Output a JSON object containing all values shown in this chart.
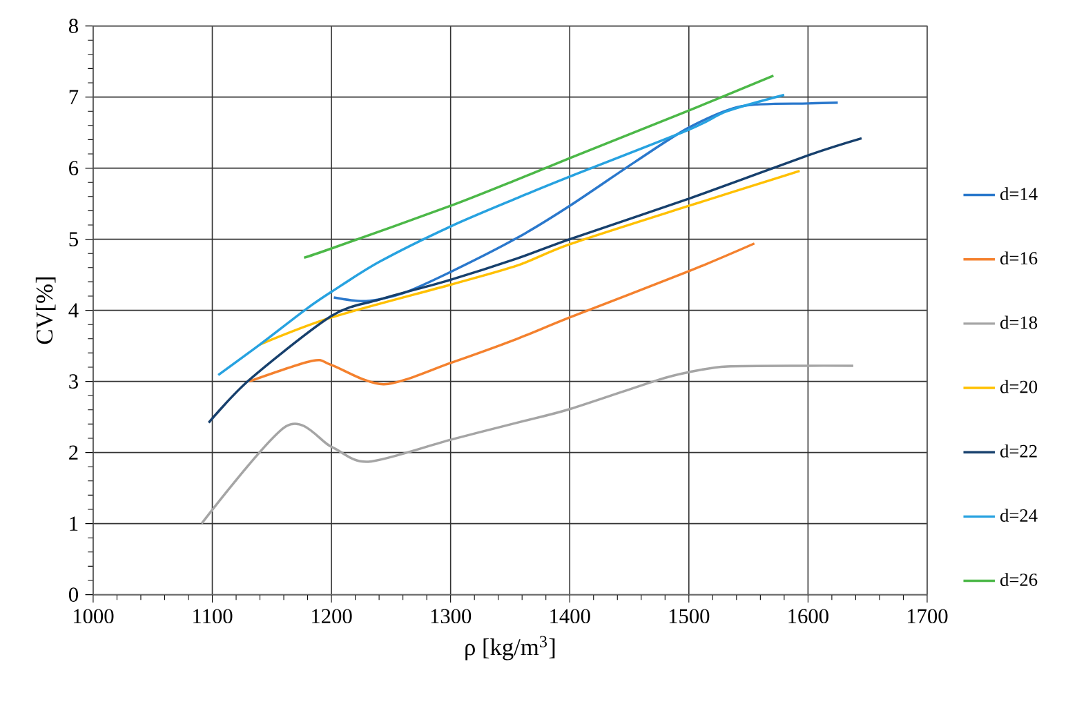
{
  "chart_data": {
    "type": "line",
    "xlabel": "ρ [kg/m$^{3}$]",
    "ylabel": "CV[%]",
    "xlim": [
      1000,
      1700
    ],
    "xticks": [
      1000,
      1100,
      1200,
      1300,
      1400,
      1500,
      1600,
      1700
    ],
    "ylim": [
      0,
      8
    ],
    "yticks": [
      0,
      1,
      2,
      3,
      4,
      5,
      6,
      7,
      8
    ],
    "grid": true,
    "legend": "right",
    "marker": "none",
    "line_style": "solid",
    "series": [
      {
        "name": "d=14",
        "color": "#2a78cc",
        "x": [
          1202,
          1229,
          1260,
          1300,
          1356,
          1400,
          1455,
          1500,
          1544,
          1600,
          1625
        ],
        "values": [
          4.18,
          4.13,
          4.24,
          4.54,
          5.02,
          5.47,
          6.09,
          6.57,
          6.87,
          6.91,
          6.92
        ]
      },
      {
        "name": "d=16",
        "color": "#f4812e",
        "x": [
          1131,
          1184,
          1200,
          1244,
          1300,
          1356,
          1400,
          1500,
          1555
        ],
        "values": [
          3.0,
          3.29,
          3.23,
          2.96,
          3.26,
          3.6,
          3.9,
          4.55,
          4.94
        ]
      },
      {
        "name": "d=18",
        "color": "#a5a5a5",
        "x": [
          1091,
          1162,
          1200,
          1231,
          1300,
          1356,
          1400,
          1474,
          1500,
          1532,
          1600,
          1638
        ],
        "values": [
          1.0,
          2.37,
          2.08,
          1.87,
          2.18,
          2.42,
          2.61,
          3.02,
          3.13,
          3.21,
          3.22,
          3.22
        ]
      },
      {
        "name": "d=20",
        "color": "#ffc000",
        "x": [
          1140,
          1200,
          1300,
          1356,
          1400,
          1500,
          1593
        ],
        "values": [
          3.52,
          3.9,
          4.36,
          4.63,
          4.93,
          5.47,
          5.96
        ]
      },
      {
        "name": "d=22",
        "color": "#17406d",
        "x": [
          1097,
          1131,
          1200,
          1240,
          1300,
          1356,
          1400,
          1500,
          1600,
          1645
        ],
        "values": [
          2.42,
          3.02,
          3.92,
          4.15,
          4.43,
          4.73,
          5.0,
          5.57,
          6.18,
          6.42
        ]
      },
      {
        "name": "d=24",
        "color": "#27a2e0",
        "x": [
          1105,
          1140,
          1179,
          1200,
          1240,
          1300,
          1356,
          1400,
          1500,
          1532,
          1580
        ],
        "values": [
          3.09,
          3.52,
          4.02,
          4.26,
          4.68,
          5.18,
          5.58,
          5.88,
          6.54,
          6.8,
          7.03
        ]
      },
      {
        "name": "d=26",
        "color": "#4cb848",
        "x": [
          1177,
          1200,
          1300,
          1356,
          1400,
          1500,
          1571
        ],
        "values": [
          4.74,
          4.87,
          5.47,
          5.84,
          6.14,
          6.81,
          7.3
        ]
      }
    ]
  }
}
